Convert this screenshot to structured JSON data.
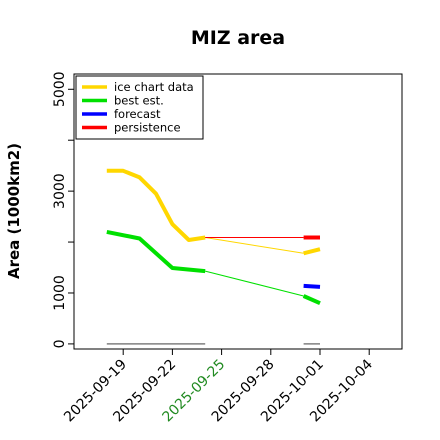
{
  "chart_data": {
    "type": "line",
    "title": "MIZ area",
    "ylabel": "Area (1000km2)",
    "xlabel": "",
    "ylim": [
      -100,
      5300
    ],
    "yticks": [
      0,
      1000,
      3000,
      5000
    ],
    "yticks_minor": [
      2000,
      4000
    ],
    "xlim": [
      "2025-09-16",
      "2025-10-06"
    ],
    "xticks": [
      {
        "label": "2025-09-19",
        "date": "2025-09-19",
        "color": "#000000"
      },
      {
        "label": "2025-09-22",
        "date": "2025-09-22",
        "color": "#000000"
      },
      {
        "label": "2025-09-25",
        "date": "2025-09-25",
        "color": "#228b22"
      },
      {
        "label": "2025-09-28",
        "date": "2025-09-28",
        "color": "#000000"
      },
      {
        "label": "2025-10-01",
        "date": "2025-10-01",
        "color": "#000000"
      },
      {
        "label": "2025-10-04",
        "date": "2025-10-04",
        "color": "#000000"
      }
    ],
    "grid": false,
    "legend": {
      "position": "top-left",
      "entries": [
        {
          "label": "ice chart data",
          "color": "#ffd700"
        },
        {
          "label": "best est.",
          "color": "#00e000"
        },
        {
          "label": "forecast",
          "color": "#0000ff"
        },
        {
          "label": "persistence",
          "color": "#ff0000"
        }
      ]
    },
    "series": [
      {
        "name": "ice chart data",
        "color": "#ffd700",
        "width": 4,
        "x": [
          "2025-09-18",
          "2025-09-19",
          "2025-09-20",
          "2025-09-21",
          "2025-09-22",
          "2025-09-23",
          "2025-09-24"
        ],
        "y": [
          3400,
          3400,
          3270,
          2950,
          2350,
          2040,
          2090
        ]
      },
      {
        "name": "ice chart data (extension)",
        "color": "#ffd700",
        "width": 1,
        "x": [
          "2025-09-24",
          "2025-09-30"
        ],
        "y": [
          2090,
          1780
        ]
      },
      {
        "name": "ice chart data (projection)",
        "color": "#ffd700",
        "width": 4,
        "x": [
          "2025-09-30",
          "2025-10-01"
        ],
        "y": [
          1780,
          1860
        ]
      },
      {
        "name": "best est.",
        "color": "#00e000",
        "width": 4,
        "x": [
          "2025-09-18",
          "2025-09-20",
          "2025-09-22",
          "2025-09-24"
        ],
        "y": [
          2200,
          2070,
          1490,
          1430
        ]
      },
      {
        "name": "best est. (extension)",
        "color": "#00e000",
        "width": 1,
        "x": [
          "2025-09-24",
          "2025-09-30"
        ],
        "y": [
          1430,
          940
        ]
      },
      {
        "name": "best est. (projection)",
        "color": "#00e000",
        "width": 4,
        "x": [
          "2025-09-30",
          "2025-10-01"
        ],
        "y": [
          940,
          800
        ]
      },
      {
        "name": "persistence (extension)",
        "color": "#ff0000",
        "width": 1,
        "x": [
          "2025-09-24",
          "2025-09-30"
        ],
        "y": [
          2090,
          2090
        ]
      },
      {
        "name": "persistence",
        "color": "#ff0000",
        "width": 4,
        "x": [
          "2025-09-30",
          "2025-10-01"
        ],
        "y": [
          2090,
          2090
        ]
      },
      {
        "name": "forecast",
        "color": "#0000ff",
        "width": 4,
        "x": [
          "2025-09-30",
          "2025-10-01"
        ],
        "y": [
          1140,
          1120
        ]
      },
      {
        "name": "baseline",
        "color": "#808080",
        "width": 1.5,
        "x": [
          "2025-09-18",
          "2025-09-24"
        ],
        "y": [
          0,
          0
        ]
      },
      {
        "name": "baseline",
        "color": "#808080",
        "width": 1.5,
        "x": [
          "2025-09-30",
          "2025-10-01"
        ],
        "y": [
          0,
          0
        ]
      }
    ]
  }
}
